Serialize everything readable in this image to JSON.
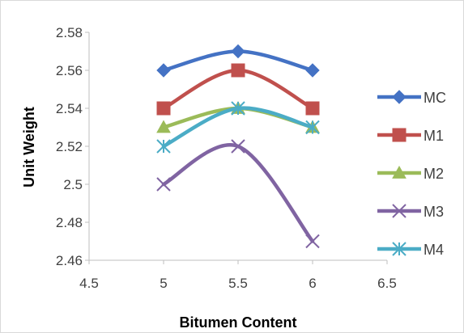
{
  "chart_data": {
    "type": "line",
    "title": "",
    "xlabel": "Bitumen Content",
    "ylabel": "Unit Weight",
    "xlim": [
      4.5,
      6.5
    ],
    "ylim": [
      2.46,
      2.58
    ],
    "x_ticks": [
      4.5,
      5,
      5.5,
      6,
      6.5
    ],
    "y_ticks": [
      2.46,
      2.48,
      2.5,
      2.52,
      2.54,
      2.56,
      2.58
    ],
    "x_tick_labels": [
      "4.5",
      "5",
      "5.5",
      "6",
      "6.5"
    ],
    "y_tick_labels": [
      "2.46",
      "2.48",
      "2.5",
      "2.52",
      "2.54",
      "2.56",
      "2.58"
    ],
    "grid": false,
    "smooth": true,
    "legend_position": "right",
    "x": [
      5,
      5.5,
      6
    ],
    "series": [
      {
        "name": "MC",
        "values": [
          2.56,
          2.57,
          2.56
        ],
        "color": "#4472c4",
        "marker": "diamond"
      },
      {
        "name": "M1",
        "values": [
          2.54,
          2.56,
          2.54
        ],
        "color": "#c0504d",
        "marker": "square"
      },
      {
        "name": "M2",
        "values": [
          2.53,
          2.54,
          2.53
        ],
        "color": "#9bbb59",
        "marker": "triangle"
      },
      {
        "name": "M3",
        "values": [
          2.5,
          2.52,
          2.47
        ],
        "color": "#8064a2",
        "marker": "x"
      },
      {
        "name": "M4",
        "values": [
          2.52,
          2.54,
          2.53
        ],
        "color": "#4bacc6",
        "marker": "star"
      }
    ]
  }
}
